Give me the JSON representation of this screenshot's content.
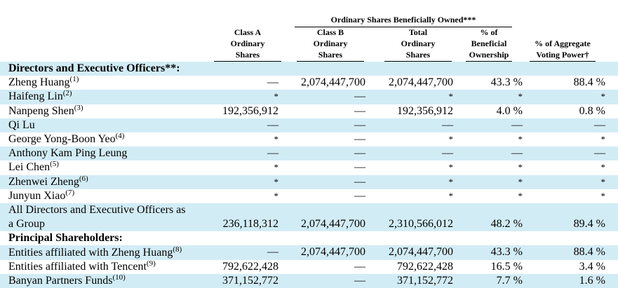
{
  "header": {
    "group_title": "Ordinary Shares Beneficially Owned***",
    "columns": [
      [
        "Class A",
        "Ordinary",
        "Shares"
      ],
      [
        "Class B",
        "Ordinary",
        "Shares"
      ],
      [
        "Total",
        "Ordinary",
        "Shares"
      ],
      [
        "% of",
        "Beneficial",
        "Ownership"
      ],
      [
        "% of Aggregate",
        "Voting Power†"
      ]
    ]
  },
  "rows": [
    {
      "type": "section",
      "name": "Directors and Executive Officers**:",
      "shaded": true
    },
    {
      "name": "Zheng Huang",
      "note": "(1)",
      "values": [
        "—",
        "2,074,447,700",
        "2,074,447,700",
        "43.3 %",
        "88.4 %"
      ],
      "shaded": false
    },
    {
      "name": "Haifeng Lin",
      "note": "(2)",
      "values": [
        "*",
        "—",
        "*",
        "*",
        "*"
      ],
      "shaded": true
    },
    {
      "name": "Nanpeng Shen",
      "note": "(3)",
      "values": [
        "192,356,912",
        "—",
        "192,356,912",
        "4.0 %",
        "0.8 %"
      ],
      "shaded": false
    },
    {
      "name": "Qi Lu",
      "note": "",
      "values": [
        "—",
        "—",
        "—",
        "—",
        "—"
      ],
      "shaded": true
    },
    {
      "name": "George Yong-Boon Yeo",
      "note": "(4)",
      "values": [
        "*",
        "—",
        "*",
        "*",
        "*"
      ],
      "shaded": false
    },
    {
      "name": "Anthony Kam Ping Leung",
      "note": "",
      "values": [
        "—",
        "—",
        "—",
        "—",
        "—"
      ],
      "shaded": true
    },
    {
      "name": "Lei Chen",
      "note": "(5)",
      "values": [
        "*",
        "—",
        "*",
        "*",
        "*"
      ],
      "shaded": false
    },
    {
      "name": "Zhenwei Zheng",
      "note": "(6)",
      "values": [
        "*",
        "—",
        "*",
        "*",
        "*"
      ],
      "shaded": true
    },
    {
      "name": "Junyun Xiao",
      "note": "(7)",
      "values": [
        "*",
        "—",
        "*",
        "*",
        "*"
      ],
      "shaded": false
    },
    {
      "type": "multi",
      "name": "All Directors and Executive Officers as",
      "name2": "a Group",
      "values": [
        "236,118,312",
        "2,074,447,700",
        "2,310,566,012",
        "48.2 %",
        "89.4 %"
      ],
      "shaded": true
    },
    {
      "type": "section",
      "name": "Principal Shareholders:",
      "shaded": false
    },
    {
      "name": "Entities affiliated with Zheng Huang",
      "note": "(8)",
      "values": [
        "—",
        "2,074,447,700",
        "2,074,447,700",
        "43.3 %",
        "88.4 %"
      ],
      "shaded": true
    },
    {
      "name": "Entities affiliated with Tencent",
      "note": "(9)",
      "values": [
        "792,622,428",
        "—",
        "792,622,428",
        "16.5 %",
        "3.4 %"
      ],
      "shaded": false
    },
    {
      "name": "Banyan Partners Funds",
      "note": "(10)",
      "values": [
        "371,152,772",
        "—",
        "371,152,772",
        "7.7 %",
        "1.6 %"
      ],
      "shaded": true
    }
  ]
}
